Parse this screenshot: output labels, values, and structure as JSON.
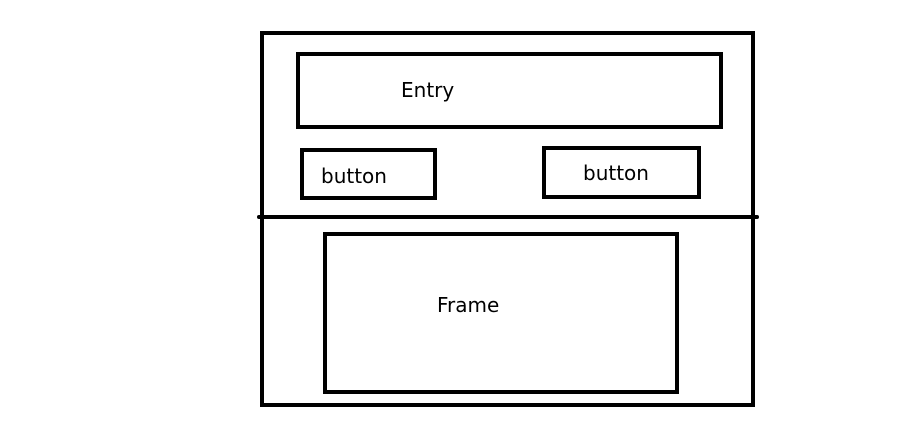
{
  "window": {
    "entry_label": "Entry",
    "button_left_label": "button",
    "button_right_label": "button",
    "frame_label": "Frame"
  },
  "colors": {
    "stroke": "#000000",
    "background": "#ffffff"
  }
}
